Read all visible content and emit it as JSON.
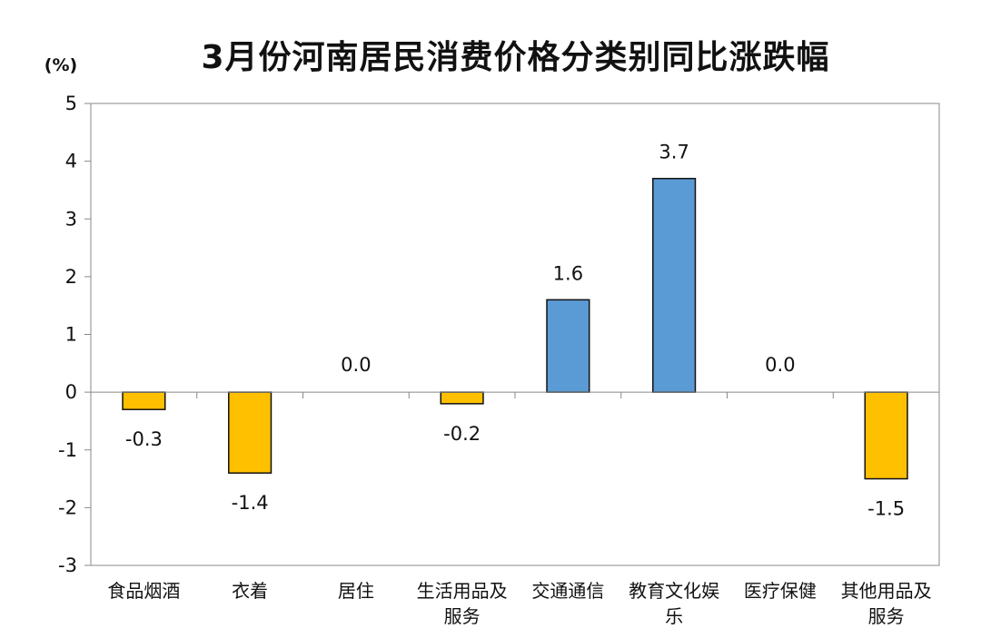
{
  "chart_data": {
    "type": "bar",
    "title": "3月份河南居民消费价格分类别同比涨跌幅",
    "ylabel": "(%)",
    "ylim": [
      -3,
      5
    ],
    "yticks": [
      5,
      4,
      3,
      2,
      1,
      0,
      -1,
      -2,
      -3
    ],
    "categories": [
      [
        "食品烟酒"
      ],
      [
        "衣着"
      ],
      [
        "居住"
      ],
      [
        "生活用品及",
        "服务"
      ],
      [
        "交通通信"
      ],
      [
        "教育文化娱",
        "乐"
      ],
      [
        "医疗保健"
      ],
      [
        "其他用品及",
        "服务"
      ]
    ],
    "values": [
      -0.3,
      -1.4,
      0.0,
      -0.2,
      1.6,
      3.7,
      0.0,
      -1.5
    ],
    "data_labels": [
      "-0.3",
      "-1.4",
      "0.0",
      "-0.2",
      "1.6",
      "3.7",
      "0.0",
      "-1.5"
    ],
    "colors": {
      "positive": "#5b9bd5",
      "negative": "#ffc000",
      "outline": "#111111"
    },
    "grid": false,
    "legend": "none"
  }
}
